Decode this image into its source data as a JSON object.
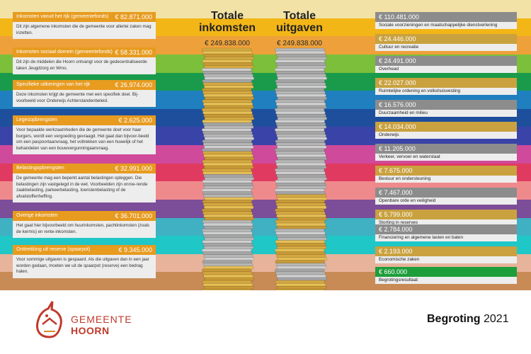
{
  "colors": {
    "orange_bar": "#e79b1f",
    "grey_bar": "#8c8c8c",
    "gold_bar": "#c9a13f",
    "green_bar": "#1e9e3a",
    "text_box": "#ededed",
    "logo_red": "#c0392b"
  },
  "bands": [
    "#f2e2a6",
    "#f3b617",
    "#eea13a",
    "#7bbf3a",
    "#1a9b4c",
    "#1f7fbf",
    "#1e4f9d",
    "#3a43a8",
    "#cf4a9a",
    "#e13a61",
    "#ef8a8c",
    "#7c4d98",
    "#3fb1c3",
    "#1fc7c7",
    "#e7b39b",
    "#c88b56"
  ],
  "center": {
    "income_title_1": "Totale",
    "income_title_2": "inkomsten",
    "income_total": "€ 249.838.000",
    "expense_title_1": "Totale",
    "expense_title_2": "uitgaven",
    "expense_total": "€ 249.838.000"
  },
  "income": [
    {
      "label": "Inkomsten vanuit het rijk (gemeentefonds)",
      "amount": "€ 82.871.000",
      "text": "Dit zijn algemene inkomsten die de gemeente voor allerlei zaken mag inzetten."
    },
    {
      "label": "Inkomsten sociaal domein (gemeentefonds)",
      "amount": "€ 58.331.000",
      "text": "Dit zijn de middelen die Hoorn ontvangt voor de gedecentraliseerde taken Jeugdzorg en Wmo."
    },
    {
      "label": "Specifieke uitkeringen van het rijk",
      "amount": "€ 26.974.000",
      "text": "Deze inkomsten krijgt de gemeente met een specifiek doel. Bij-voorbeeld voor Onderwijs Achterstandenbeleid."
    },
    {
      "label": "Legesopbrengsten",
      "amount": "€ 2.625.000",
      "text": "Voor bepaalde werkzaamheden die de gemeente doet voor haar burgers, wordt een vergoeding gevraagd. Het gaat dan bijvoor-beeld om een paspoortaanvraag, het voltrekken van een huwelijk of het behandelen van een bouwvergunningaanvraag."
    },
    {
      "label": "Belastingopbrengsten",
      "amount": "€ 32.991.000",
      "text": "De gemeente mag een beperkt aantal belastingen opleggen. Die belastingen zijn vastgelegd in de wet. Voorbeelden zijn onroe-rende zaakbelasting, parkeerbelasting, toeristenbelasting of de afvalstoffenheffing."
    },
    {
      "label": "Overige inkomsten",
      "amount": "€ 36.701.000",
      "text": "Het gaat hier bijvoorbeeld om huurinkomsten, pachtinkomsten (zoals de kermis) en rente-inkomsten."
    },
    {
      "label": "Onttrekking uit reserve (spaarpot)",
      "amount": "€ 9.345.000",
      "text": "Voor sommige uitgaven is gespaard. Als die uitgaven dan in een jaar worden gedaan, moeten we uit de spaarpot (reserve) een bedrag halen."
    }
  ],
  "expenses": [
    {
      "amount": "€ 110.481.000",
      "label": "Sociale voorzieningen en maatschappelijke dienstverlening",
      "kind": "grey"
    },
    {
      "amount": "€ 24.446.000",
      "label": "Cultuur en recreatie",
      "kind": "gold"
    },
    {
      "amount": "€ 24.491.000",
      "label": "Overhead",
      "kind": "grey"
    },
    {
      "amount": "€ 22.027.000",
      "label": "Ruimtelijke ordening en volkshuisvesting",
      "kind": "gold"
    },
    {
      "amount": "€ 16.576.000",
      "label": "Duurzaamheid en milieu",
      "kind": "grey"
    },
    {
      "amount": "€ 14.034.000",
      "label": "Onderwijs",
      "kind": "gold"
    },
    {
      "amount": "€ 11.205.000",
      "label": "Verkeer, vervoer en waterstaat",
      "kind": "grey"
    },
    {
      "amount": "€ 7.675.000",
      "label": "Bestuur en ondersteuning",
      "kind": "gold"
    },
    {
      "amount": "€ 7.467.000",
      "label": "Openbare orde en veiligheid",
      "kind": "grey"
    },
    {
      "amount": "€ 5.799.000",
      "label": "Storting in reserves",
      "kind": "gold"
    },
    {
      "amount": "€ 2.784.000",
      "label": "Financiering en algemene lasten en baten",
      "kind": "grey"
    },
    {
      "amount": "€ 2.193.000",
      "label": "Economische zaken",
      "kind": "gold"
    },
    {
      "amount": "€ 660.000",
      "label": "Begrotingsresultaat",
      "kind": "green"
    }
  ],
  "footer": {
    "logo_line1": "GEMEENTE",
    "logo_line2": "HOORN",
    "budget_word": "Begroting",
    "budget_year": "2021"
  }
}
